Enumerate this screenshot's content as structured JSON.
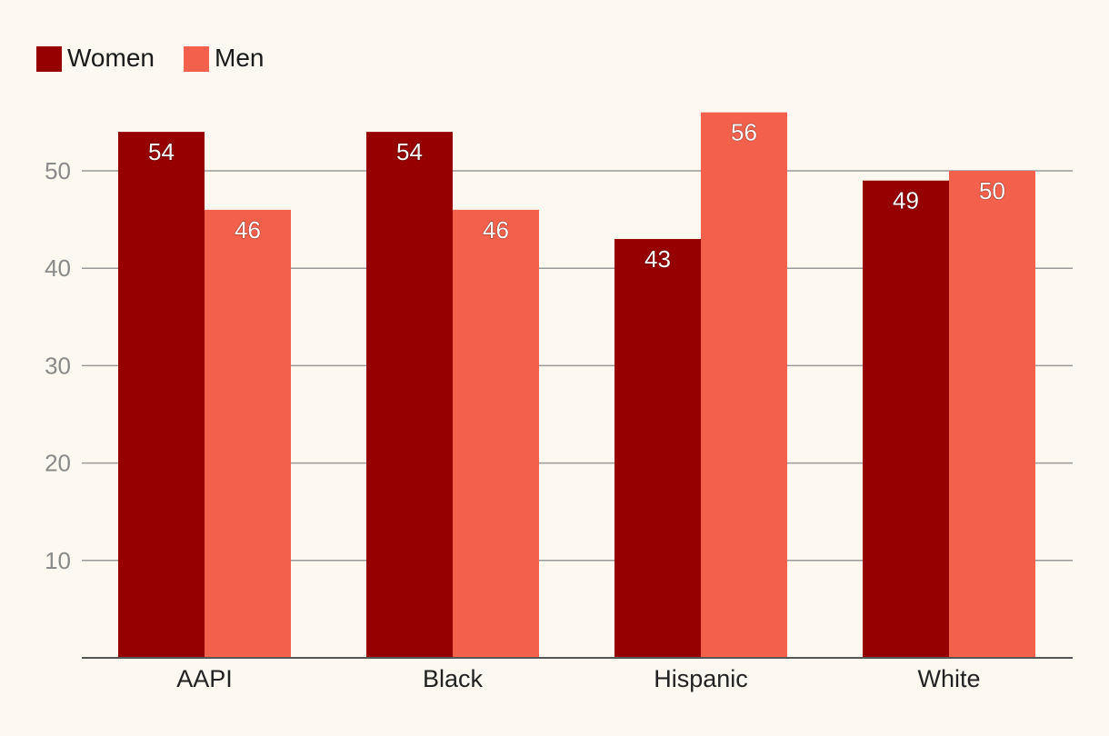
{
  "chart_data": {
    "type": "bar",
    "categories": [
      "AAPI",
      "Black",
      "Hispanic",
      "White"
    ],
    "series": [
      {
        "name": "Women",
        "color": "#960000",
        "values": [
          54,
          54,
          43,
          49
        ]
      },
      {
        "name": "Men",
        "color": "#f3604b",
        "values": [
          46,
          46,
          56,
          50
        ]
      }
    ],
    "yticks": [
      10,
      20,
      30,
      40,
      50
    ],
    "ylim": [
      0,
      60
    ],
    "grid": true,
    "legend": "top-left",
    "title": "",
    "xlabel": "",
    "ylabel": ""
  },
  "colors": {
    "background": "#fdf8f0",
    "gridline": "#999999",
    "axis": "#555555"
  }
}
